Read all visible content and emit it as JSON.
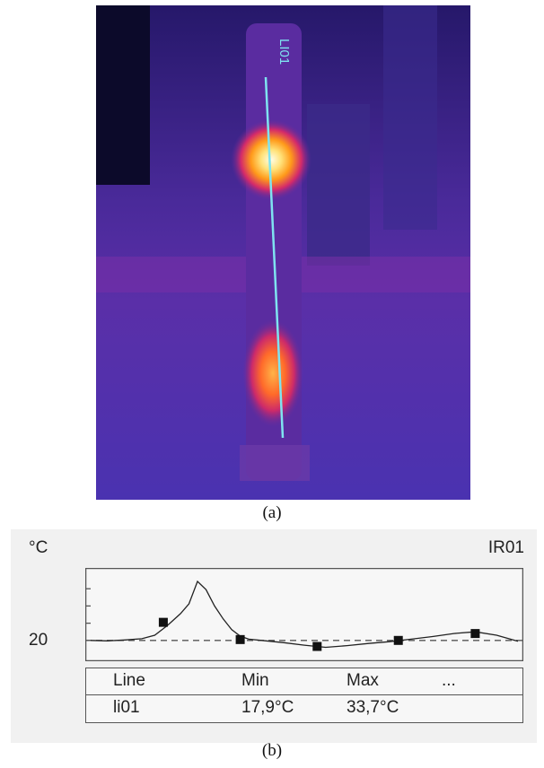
{
  "thermal_image": {
    "line_label": "LI01",
    "colors": {
      "background": "#3a2a8a",
      "hot_core": "#fffbe0",
      "hot_mid": "#ffb000",
      "warm": "#e0206a",
      "line": "#7fe3f0"
    }
  },
  "captions": {
    "a": "(a)",
    "b": "(b)"
  },
  "profile": {
    "unit": "°C",
    "id": "IR01",
    "y_tick_label": "20",
    "table": {
      "headers": [
        "Line",
        "Min",
        "Max",
        "..."
      ],
      "rows": [
        {
          "name": "li01",
          "min": "17,9°C",
          "max": "33,7°C"
        }
      ]
    }
  },
  "chart_data": {
    "type": "line",
    "title": "",
    "xlabel": "",
    "ylabel": "°C",
    "ylim": [
      16,
      36
    ],
    "reference_line": 20,
    "y_ticks": [
      20
    ],
    "series": [
      {
        "x": [
          0,
          4,
          8,
          12,
          15,
          18,
          21,
          23,
          25,
          27,
          29,
          31,
          33,
          35,
          37,
          40,
          45,
          50,
          55,
          60,
          65,
          70,
          75,
          80,
          85,
          90,
          95,
          100
        ],
        "values": [
          20.0,
          19.9,
          20.1,
          20.4,
          21.2,
          23.5,
          26.2,
          28.5,
          33.7,
          31.8,
          28.0,
          25.0,
          22.5,
          21.0,
          20.3,
          20.0,
          19.5,
          18.9,
          18.4,
          18.8,
          19.3,
          19.7,
          20.3,
          20.9,
          21.6,
          22.0,
          21.2,
          19.8
        ]
      }
    ],
    "markers": [
      {
        "x": 17,
        "y": 24.2
      },
      {
        "x": 35,
        "y": 20.2
      },
      {
        "x": 53,
        "y": 18.6
      },
      {
        "x": 72,
        "y": 20.0
      },
      {
        "x": 90,
        "y": 21.6
      }
    ]
  }
}
